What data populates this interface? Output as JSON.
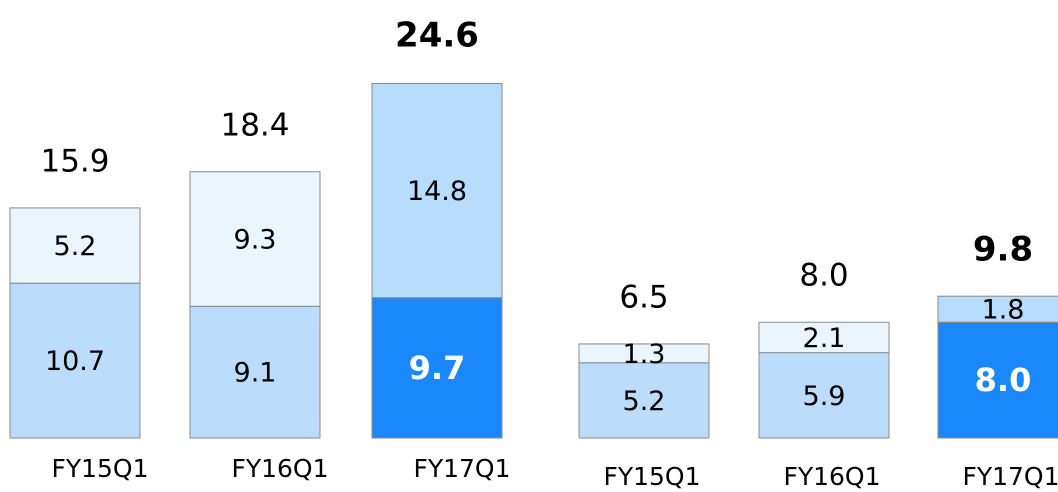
{
  "chart_data": [
    {
      "type": "stacked_bar",
      "categories": [
        "FY15Q1",
        "FY16Q1",
        "FY17Q1"
      ],
      "totals": [
        15.9,
        18.4,
        24.6
      ],
      "series": [
        {
          "values": [
            10.7,
            9.1,
            9.7
          ],
          "colors": [
            "#bcdcfb",
            "#bcdcfb",
            "#1a88fb"
          ]
        },
        {
          "values": [
            5.2,
            9.3,
            14.8
          ],
          "colors": [
            "#eaf5fe",
            "#eaf5fe",
            "#b8dcfb"
          ]
        }
      ]
    },
    {
      "type": "stacked_bar",
      "categories": [
        "FY15Q1",
        "FY16Q1",
        "FY17Q1"
      ],
      "totals": [
        6.5,
        8.0,
        9.8
      ],
      "total_labels": [
        "6.5",
        "8.0",
        "9.8"
      ],
      "series": [
        {
          "values": [
            5.2,
            5.9,
            8.0
          ],
          "value_labels": [
            "5.2",
            "5.9",
            "8.0"
          ],
          "colors": [
            "#bcdcfb",
            "#bcdcfb",
            "#1a88fb"
          ]
        },
        {
          "values": [
            1.3,
            2.1,
            1.8
          ],
          "colors": [
            "#eaf5fe",
            "#eaf5fe",
            "#b8dcfb"
          ]
        }
      ]
    }
  ]
}
